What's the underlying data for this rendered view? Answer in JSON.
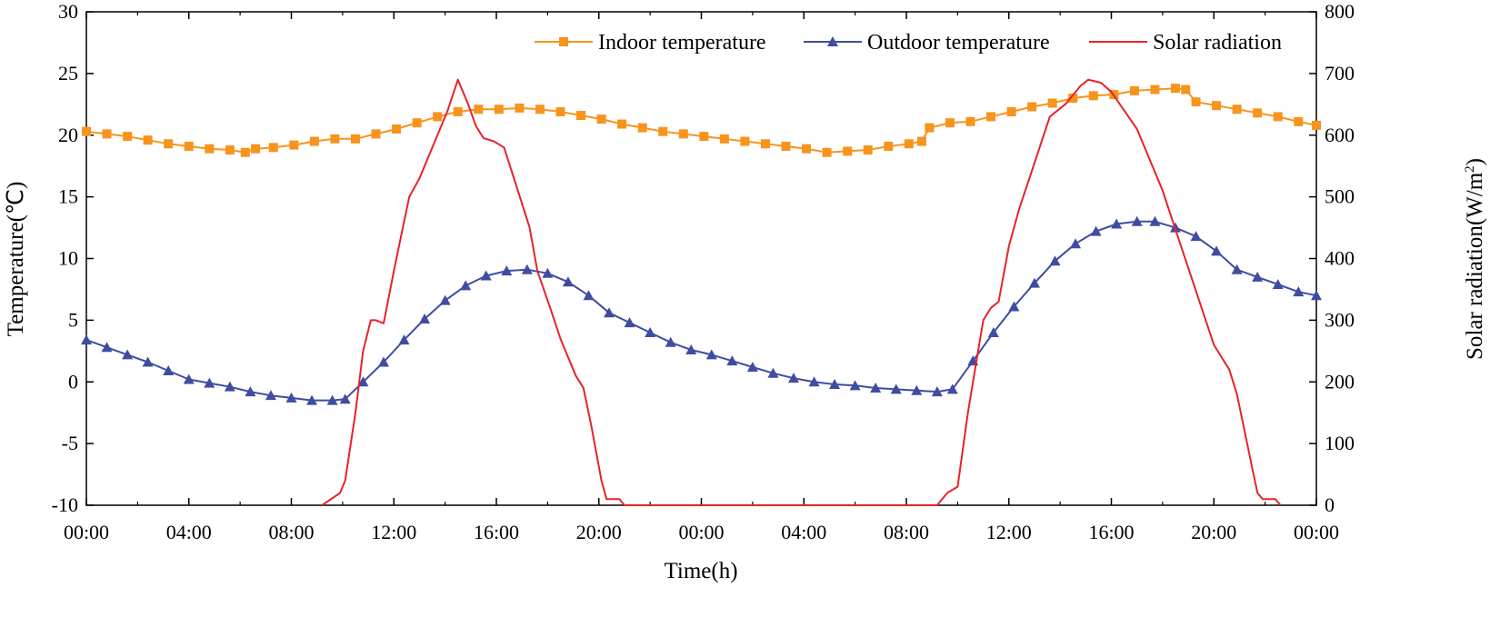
{
  "chart_data": {
    "type": "line",
    "xlabel": "Time(h)",
    "ylabel_left": "Temperature(℃)",
    "ylabel_right_prefix": "Solar radiation(W/m",
    "ylabel_right_sup": "2",
    "ylabel_right_suffix": ")",
    "x_range_hours": [
      0,
      48
    ],
    "ylim_left": [
      -10,
      30
    ],
    "ylim_right": [
      0,
      800
    ],
    "x_ticks": [
      {
        "h": 0,
        "label": "00:00"
      },
      {
        "h": 4,
        "label": "04:00"
      },
      {
        "h": 8,
        "label": "08:00"
      },
      {
        "h": 12,
        "label": "12:00"
      },
      {
        "h": 16,
        "label": "16:00"
      },
      {
        "h": 20,
        "label": "20:00"
      },
      {
        "h": 24,
        "label": "00:00"
      },
      {
        "h": 28,
        "label": "04:00"
      },
      {
        "h": 32,
        "label": "08:00"
      },
      {
        "h": 36,
        "label": "12:00"
      },
      {
        "h": 40,
        "label": "16:00"
      },
      {
        "h": 44,
        "label": "20:00"
      },
      {
        "h": 48,
        "label": "00:00"
      }
    ],
    "y_left_ticks": [
      "-10",
      "-5",
      "0",
      "5",
      "10",
      "15",
      "20",
      "25",
      "30"
    ],
    "y_right_ticks": [
      "0",
      "100",
      "200",
      "300",
      "400",
      "500",
      "600",
      "700",
      "800"
    ],
    "legend_position": "top-right",
    "series": [
      {
        "name": "Indoor temperature",
        "axis": "left",
        "color": "#F7941D",
        "marker": "square",
        "points": [
          [
            0,
            20.3
          ],
          [
            0.8,
            20.1
          ],
          [
            1.6,
            19.9
          ],
          [
            2.4,
            19.6
          ],
          [
            3.2,
            19.3
          ],
          [
            4,
            19.1
          ],
          [
            4.8,
            18.9
          ],
          [
            5.6,
            18.8
          ],
          [
            6.2,
            18.6
          ],
          [
            6.6,
            18.9
          ],
          [
            7.3,
            19.0
          ],
          [
            8.1,
            19.2
          ],
          [
            8.9,
            19.5
          ],
          [
            9.7,
            19.7
          ],
          [
            10.5,
            19.7
          ],
          [
            11.3,
            20.1
          ],
          [
            12.1,
            20.5
          ],
          [
            12.9,
            21.0
          ],
          [
            13.7,
            21.5
          ],
          [
            14.5,
            21.9
          ],
          [
            15.3,
            22.1
          ],
          [
            16.1,
            22.1
          ],
          [
            16.9,
            22.2
          ],
          [
            17.7,
            22.1
          ],
          [
            18.5,
            21.9
          ],
          [
            19.3,
            21.6
          ],
          [
            20.1,
            21.3
          ],
          [
            20.9,
            20.9
          ],
          [
            21.7,
            20.6
          ],
          [
            22.5,
            20.3
          ],
          [
            23.3,
            20.1
          ],
          [
            24.1,
            19.9
          ],
          [
            24.9,
            19.7
          ],
          [
            25.7,
            19.5
          ],
          [
            26.5,
            19.3
          ],
          [
            27.3,
            19.1
          ],
          [
            28.1,
            18.9
          ],
          [
            28.9,
            18.6
          ],
          [
            29.7,
            18.7
          ],
          [
            30.5,
            18.8
          ],
          [
            31.3,
            19.1
          ],
          [
            32.1,
            19.3
          ],
          [
            32.6,
            19.5
          ],
          [
            32.9,
            20.6
          ],
          [
            33.7,
            21.0
          ],
          [
            34.5,
            21.1
          ],
          [
            35.3,
            21.5
          ],
          [
            36.1,
            21.9
          ],
          [
            36.9,
            22.3
          ],
          [
            37.7,
            22.6
          ],
          [
            38.5,
            23.0
          ],
          [
            39.3,
            23.2
          ],
          [
            40.1,
            23.3
          ],
          [
            40.9,
            23.6
          ],
          [
            41.7,
            23.7
          ],
          [
            42.5,
            23.8
          ],
          [
            42.9,
            23.7
          ],
          [
            43.3,
            22.7
          ],
          [
            44.1,
            22.4
          ],
          [
            44.9,
            22.1
          ],
          [
            45.7,
            21.8
          ],
          [
            46.5,
            21.5
          ],
          [
            47.3,
            21.1
          ],
          [
            48,
            20.8
          ]
        ]
      },
      {
        "name": "Outdoor temperature",
        "axis": "left",
        "color": "#3F4DA0",
        "marker": "triangle",
        "points": [
          [
            0,
            3.4
          ],
          [
            0.8,
            2.8
          ],
          [
            1.6,
            2.2
          ],
          [
            2.4,
            1.6
          ],
          [
            3.2,
            0.9
          ],
          [
            4,
            0.2
          ],
          [
            4.8,
            -0.1
          ],
          [
            5.6,
            -0.4
          ],
          [
            6.4,
            -0.8
          ],
          [
            7.2,
            -1.1
          ],
          [
            8,
            -1.3
          ],
          [
            8.8,
            -1.5
          ],
          [
            9.6,
            -1.5
          ],
          [
            10.1,
            -1.4
          ],
          [
            10.8,
            0.0
          ],
          [
            11.6,
            1.6
          ],
          [
            12.4,
            3.4
          ],
          [
            13.2,
            5.1
          ],
          [
            14.0,
            6.6
          ],
          [
            14.8,
            7.8
          ],
          [
            15.6,
            8.6
          ],
          [
            16.4,
            9.0
          ],
          [
            17.2,
            9.1
          ],
          [
            18.0,
            8.8
          ],
          [
            18.8,
            8.1
          ],
          [
            19.6,
            7.0
          ],
          [
            20.4,
            5.6
          ],
          [
            21.2,
            4.8
          ],
          [
            22.0,
            4.0
          ],
          [
            22.8,
            3.2
          ],
          [
            23.6,
            2.6
          ],
          [
            24.4,
            2.2
          ],
          [
            25.2,
            1.7
          ],
          [
            26.0,
            1.2
          ],
          [
            26.8,
            0.7
          ],
          [
            27.6,
            0.3
          ],
          [
            28.4,
            0.0
          ],
          [
            29.2,
            -0.2
          ],
          [
            30.0,
            -0.3
          ],
          [
            30.8,
            -0.5
          ],
          [
            31.6,
            -0.6
          ],
          [
            32.4,
            -0.7
          ],
          [
            33.2,
            -0.8
          ],
          [
            33.8,
            -0.6
          ],
          [
            34.6,
            1.7
          ],
          [
            35.4,
            4.0
          ],
          [
            36.2,
            6.1
          ],
          [
            37.0,
            8.0
          ],
          [
            37.8,
            9.8
          ],
          [
            38.6,
            11.2
          ],
          [
            39.4,
            12.2
          ],
          [
            40.2,
            12.8
          ],
          [
            41.0,
            13.0
          ],
          [
            41.7,
            13.0
          ],
          [
            42.5,
            12.5
          ],
          [
            43.3,
            11.8
          ],
          [
            44.1,
            10.6
          ],
          [
            44.9,
            9.1
          ],
          [
            45.7,
            8.5
          ],
          [
            46.5,
            7.9
          ],
          [
            47.3,
            7.3
          ],
          [
            48,
            7.0
          ]
        ]
      },
      {
        "name": "Solar radiation",
        "axis": "right",
        "color": "#E8222A",
        "marker": "none",
        "points": [
          [
            9.2,
            0
          ],
          [
            9.9,
            20
          ],
          [
            10.1,
            40
          ],
          [
            10.5,
            150
          ],
          [
            10.8,
            250
          ],
          [
            11.1,
            300
          ],
          [
            11.3,
            300
          ],
          [
            11.6,
            295
          ],
          [
            12.0,
            380
          ],
          [
            12.3,
            440
          ],
          [
            12.6,
            500
          ],
          [
            13.0,
            530
          ],
          [
            13.3,
            560
          ],
          [
            13.7,
            600
          ],
          [
            14.1,
            640
          ],
          [
            14.5,
            690
          ],
          [
            14.9,
            650
          ],
          [
            15.2,
            615
          ],
          [
            15.5,
            595
          ],
          [
            15.9,
            590
          ],
          [
            16.3,
            580
          ],
          [
            16.8,
            515
          ],
          [
            17.3,
            450
          ],
          [
            17.6,
            380
          ],
          [
            18.1,
            320
          ],
          [
            18.5,
            270
          ],
          [
            18.8,
            240
          ],
          [
            19.1,
            210
          ],
          [
            19.4,
            190
          ],
          [
            19.7,
            130
          ],
          [
            20.1,
            40
          ],
          [
            20.3,
            10
          ],
          [
            20.8,
            10
          ],
          [
            21.0,
            0
          ],
          [
            33.2,
            0
          ],
          [
            33.6,
            20
          ],
          [
            34.0,
            30
          ],
          [
            34.4,
            150
          ],
          [
            34.8,
            250
          ],
          [
            35.0,
            300
          ],
          [
            35.3,
            320
          ],
          [
            35.6,
            330
          ],
          [
            36.0,
            420
          ],
          [
            36.4,
            480
          ],
          [
            36.8,
            530
          ],
          [
            37.2,
            580
          ],
          [
            37.6,
            630
          ],
          [
            38.2,
            650
          ],
          [
            38.8,
            680
          ],
          [
            39.1,
            690
          ],
          [
            39.6,
            685
          ],
          [
            40.0,
            670
          ],
          [
            40.5,
            640
          ],
          [
            41.0,
            610
          ],
          [
            41.5,
            560
          ],
          [
            42.0,
            510
          ],
          [
            42.4,
            460
          ],
          [
            42.8,
            410
          ],
          [
            43.2,
            360
          ],
          [
            43.6,
            310
          ],
          [
            44.0,
            260
          ],
          [
            44.3,
            240
          ],
          [
            44.6,
            220
          ],
          [
            44.9,
            180
          ],
          [
            45.2,
            120
          ],
          [
            45.5,
            60
          ],
          [
            45.7,
            20
          ],
          [
            45.9,
            10
          ],
          [
            46.4,
            10
          ],
          [
            46.6,
            0
          ]
        ]
      }
    ]
  }
}
